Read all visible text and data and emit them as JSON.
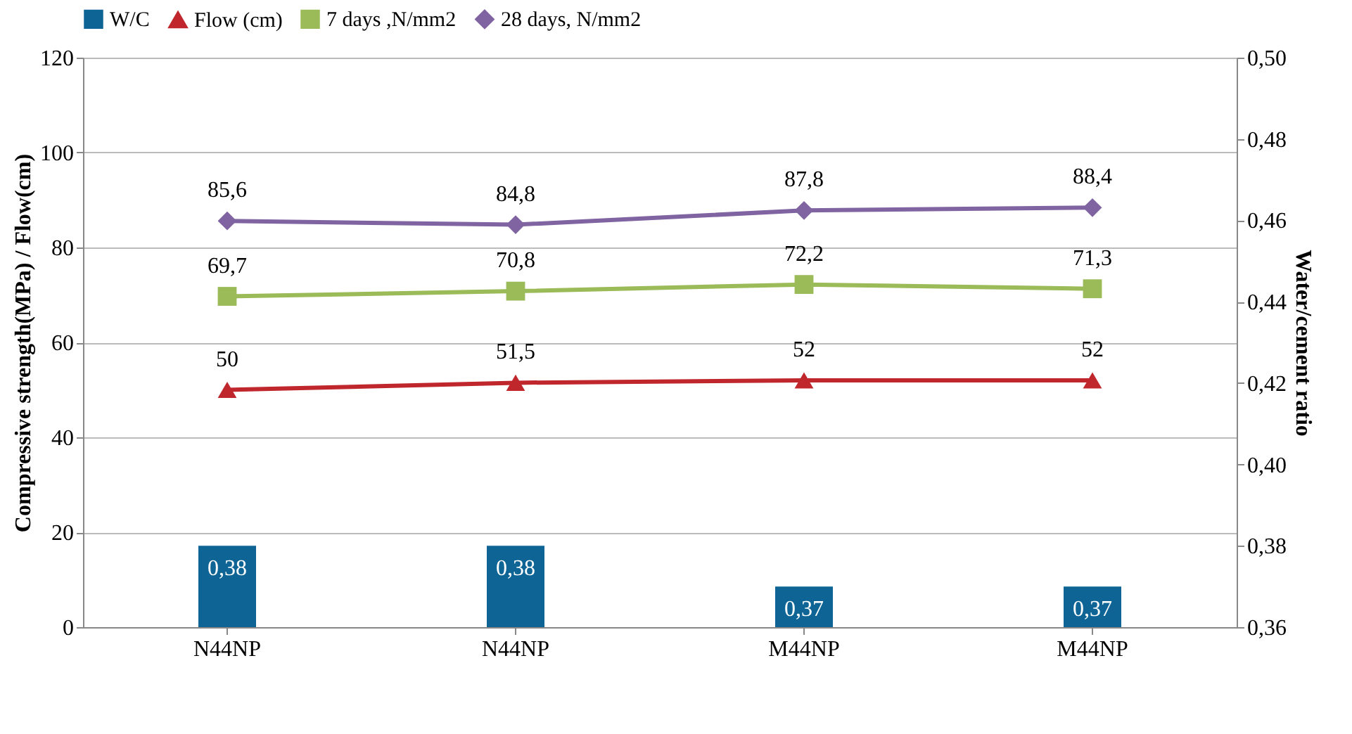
{
  "chart_data": {
    "type": "line",
    "categories": [
      "N44NP",
      "N44NP",
      "M44NP",
      "M44NP"
    ],
    "ylabel": "Compressive strength(MPa) / Flow(cm)",
    "y2label": "Water/cement ratio",
    "ylim": [
      0,
      120
    ],
    "yticks": [
      0,
      20,
      40,
      60,
      80,
      100,
      120
    ],
    "y2lim": [
      0.36,
      0.5
    ],
    "y2ticks": [
      {
        "value": 0.36,
        "label": "0,36"
      },
      {
        "value": 0.38,
        "label": "0,38"
      },
      {
        "value": 0.4,
        "label": "0,40"
      },
      {
        "value": 0.42,
        "label": "0,42"
      },
      {
        "value": 0.44,
        "label": "0,44"
      },
      {
        "value": 0.46,
        "label": "0,46"
      },
      {
        "value": 0.48,
        "label": "0,48"
      },
      {
        "value": 0.5,
        "label": "0,50"
      }
    ],
    "grid": "y",
    "legend": "top",
    "series": [
      {
        "name": "W/C",
        "type": "bar",
        "axis": "y2",
        "color": "#0e6595",
        "values": [
          0.38,
          0.38,
          0.37,
          0.37
        ],
        "value_labels": [
          "0,38",
          "0,38",
          "0,37",
          "0,37"
        ]
      },
      {
        "name": "Flow (cm)",
        "color": "#c0272d",
        "marker": "triangle",
        "values": [
          50,
          51.5,
          52,
          52
        ],
        "value_labels": [
          "50",
          "51,5",
          "52",
          "52"
        ]
      },
      {
        "name": "7 days ,N/mm2",
        "color": "#9bbb59",
        "marker": "square",
        "values": [
          69.7,
          70.8,
          72.2,
          71.3
        ],
        "value_labels": [
          "69,7",
          "70,8",
          "72,2",
          "71,3"
        ]
      },
      {
        "name": "28 days, N/mm2",
        "color": "#8064a2",
        "marker": "diamond",
        "values": [
          85.6,
          84.8,
          87.8,
          88.4
        ],
        "value_labels": [
          "85,6",
          "84,8",
          "87,8",
          "88,4"
        ]
      }
    ]
  }
}
